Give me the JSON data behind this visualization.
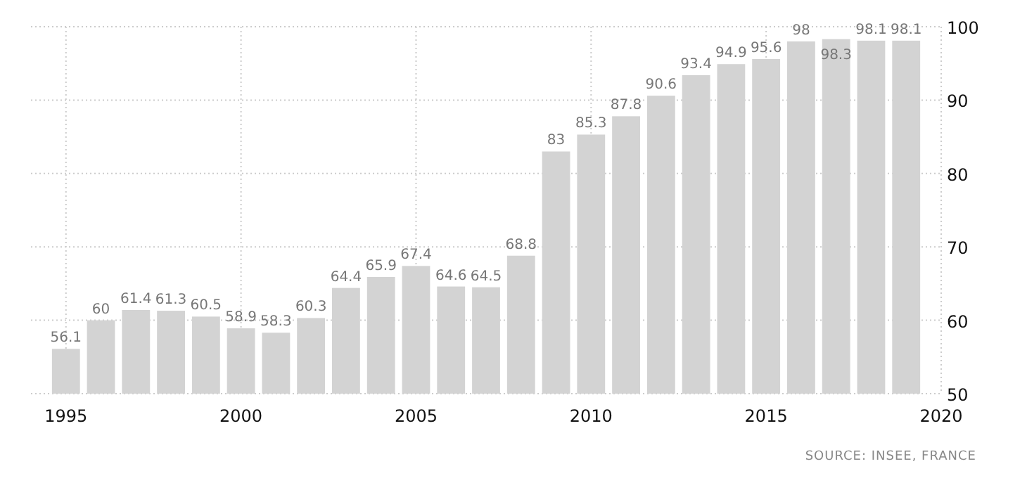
{
  "chart_data": {
    "type": "bar",
    "x": [
      1995,
      1996,
      1997,
      1998,
      1999,
      2000,
      2001,
      2002,
      2003,
      2004,
      2005,
      2006,
      2007,
      2008,
      2009,
      2010,
      2011,
      2012,
      2013,
      2014,
      2015,
      2016,
      2017,
      2018,
      2019
    ],
    "values": [
      56.1,
      60,
      61.4,
      61.3,
      60.5,
      58.9,
      58.3,
      60.3,
      64.4,
      65.9,
      67.4,
      64.6,
      64.5,
      68.8,
      83,
      85.3,
      87.8,
      90.6,
      93.4,
      94.9,
      95.6,
      98,
      98.3,
      98.1,
      98.1
    ],
    "color": "#d3d3d3",
    "xlim": [
      1994,
      2020
    ],
    "xticks": [
      1995,
      2000,
      2005,
      2010,
      2015,
      2020
    ],
    "ylim": [
      50,
      100
    ],
    "yticks": [
      50,
      60,
      70,
      80,
      90,
      100
    ],
    "grid": true,
    "data_labels": true,
    "annotations": [
      "SOURCE: INSEE, FRANCE"
    ]
  }
}
